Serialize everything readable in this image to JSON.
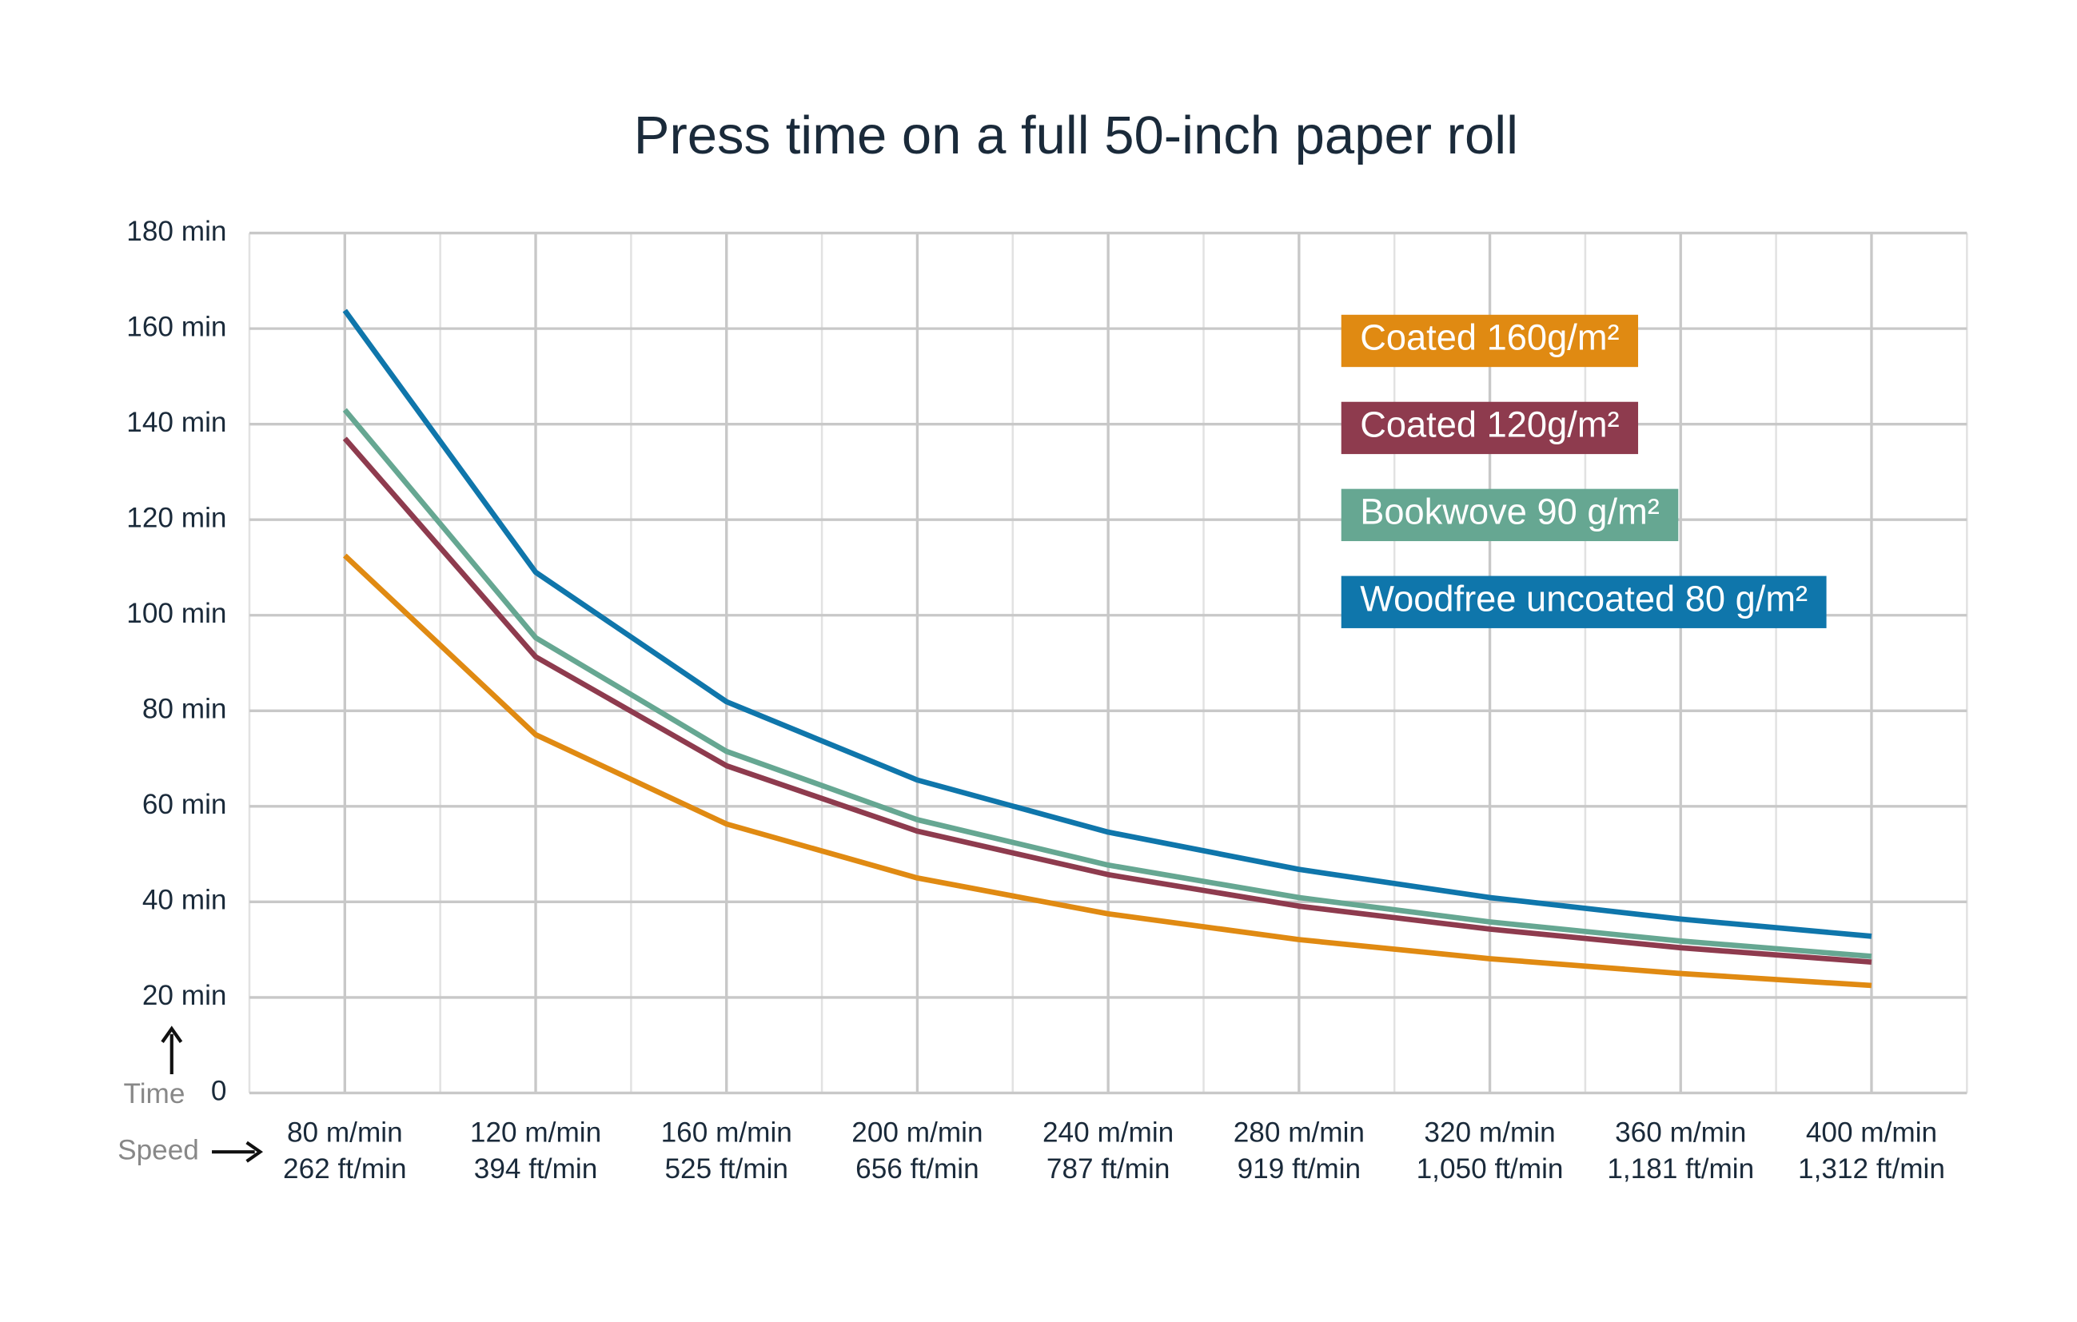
{
  "chart_data": {
    "type": "line",
    "title": "Press time on a full 50-inch paper roll",
    "x_label": "Speed",
    "y_label": "Time",
    "categories": [
      "80 m/min",
      "120 m/min",
      "160 m/min",
      "200 m/min",
      "240 m/min",
      "280 m/min",
      "320 m/min",
      "360 m/min",
      "400 m/min"
    ],
    "categories_secondary": [
      "262 ft/min",
      "394 ft/min",
      "525 ft/min",
      "656 ft/min",
      "787 ft/min",
      "919 ft/min",
      "1,050 ft/min",
      "1,181 ft/min",
      "1,312 ft/min"
    ],
    "series": [
      {
        "name": "Coated 160g/m²",
        "color": "#e08a12",
        "values": [
          112.5,
          75,
          56.3,
          45,
          37.5,
          32.1,
          28.1,
          25,
          22.5
        ]
      },
      {
        "name": "Coated 120g/m²",
        "color": "#8e3b4e",
        "values": [
          137,
          91.3,
          68.5,
          54.8,
          45.7,
          39.1,
          34.3,
          30.4,
          27.4
        ]
      },
      {
        "name": "Bookwove 90 g/m²",
        "color": "#66a792",
        "values": [
          143,
          95.3,
          71.5,
          57.2,
          47.7,
          40.9,
          35.8,
          31.8,
          28.6
        ]
      },
      {
        "name": "Woodfree uncoated 80 g/m²",
        "color": "#0f76ab",
        "values": [
          163.8,
          109,
          81.9,
          65.5,
          54.6,
          46.8,
          40.9,
          36.4,
          32.8
        ]
      }
    ],
    "ylim": [
      0,
      180
    ],
    "yticks": [
      0,
      {
        "value": 20,
        "label": "20 min"
      },
      {
        "value": 40,
        "label": "40 min"
      },
      {
        "value": 60,
        "label": "60 min"
      },
      {
        "value": 80,
        "label": "80 min"
      },
      {
        "value": 100,
        "label": "100 min"
      },
      {
        "value": 120,
        "label": "120 min"
      },
      {
        "value": 140,
        "label": "140 min"
      },
      {
        "value": 160,
        "label": "160 min"
      },
      {
        "value": 180,
        "label": "180 min"
      }
    ],
    "grid": true,
    "legend": "upper right"
  }
}
